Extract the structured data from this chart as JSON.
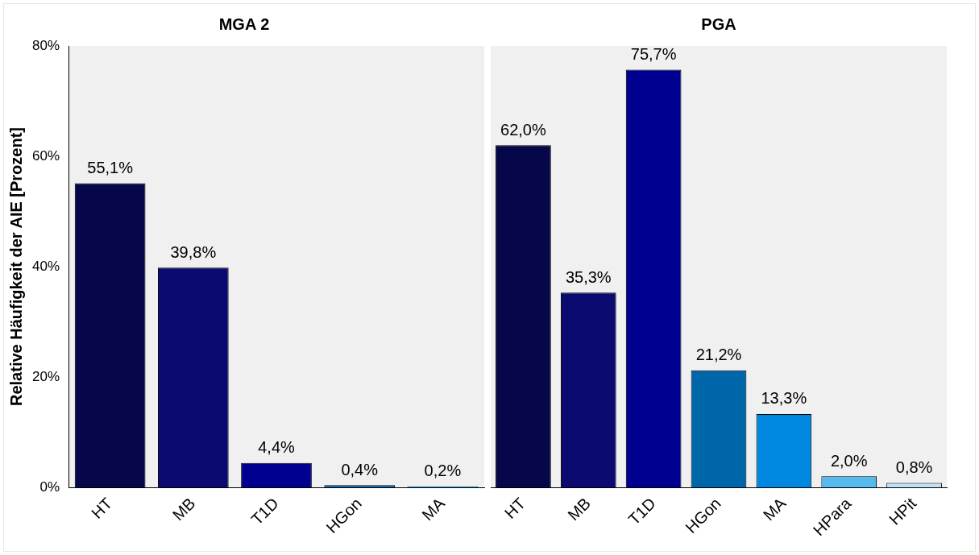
{
  "chart_data": [
    {
      "type": "bar",
      "title": "MGA 2",
      "ylabel": "Relative Häufigkeit der AIE [Prozent]",
      "categories": [
        "HT",
        "MB",
        "T1D",
        "HGon",
        "MA"
      ],
      "values": [
        55.1,
        39.8,
        4.4,
        0.4,
        0.2
      ],
      "colors": [
        "#06064a",
        "#0a0a70",
        "#000090",
        "#0066aa",
        "#0088e0"
      ],
      "value_labels": [
        "55,1%",
        "39,8%",
        "4,4%",
        "0,4%",
        "0,2%"
      ],
      "ylim": [
        0,
        80
      ],
      "yticks": [
        {
          "value": 0,
          "label": "0%"
        },
        {
          "value": 20,
          "label": "20%"
        },
        {
          "value": 40,
          "label": "40%"
        },
        {
          "value": 60,
          "label": "60%"
        },
        {
          "value": 80,
          "label": "80%"
        }
      ],
      "grid": false,
      "legend": false
    },
    {
      "type": "bar",
      "title": "PGA",
      "categories": [
        "HT",
        "MB",
        "T1D",
        "HGon",
        "MA",
        "HPara",
        "HPit"
      ],
      "values": [
        62.0,
        35.3,
        75.7,
        21.2,
        13.3,
        2.0,
        0.8
      ],
      "colors": [
        "#06064a",
        "#0a0a70",
        "#000090",
        "#0066aa",
        "#0088e0",
        "#55bbee",
        "#c0e0f8"
      ],
      "value_labels": [
        "62,0%",
        "35,3%",
        "75,7%",
        "21,2%",
        "13,3%",
        "2,0%",
        "0,8%"
      ],
      "ylim": [
        0,
        80
      ],
      "yticks": [
        {
          "value": 0,
          "label": null
        },
        {
          "value": 20,
          "label": null
        },
        {
          "value": 40,
          "label": null
        },
        {
          "value": 60,
          "label": null
        },
        {
          "value": 80,
          "label": null
        }
      ],
      "grid": false,
      "legend": false,
      "tick_labels": "x"
    }
  ]
}
